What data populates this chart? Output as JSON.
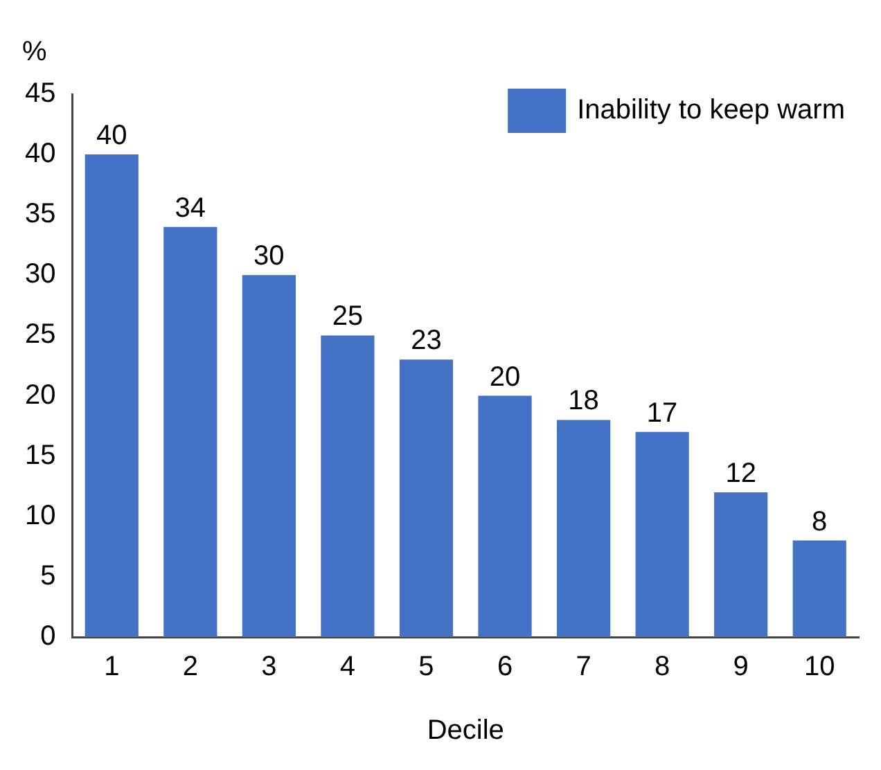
{
  "chart_data": {
    "type": "bar",
    "ylabel": "%",
    "xlabel": "Decile",
    "categories": [
      "1",
      "2",
      "3",
      "4",
      "5",
      "6",
      "7",
      "8",
      "9",
      "10"
    ],
    "series": [
      {
        "name": "Inability to keep warm",
        "color": "#4472c4",
        "values": [
          40,
          34,
          30,
          25,
          23,
          20,
          18,
          17,
          12,
          8
        ]
      }
    ],
    "ylim": [
      0,
      45
    ],
    "yticks": [
      0,
      5,
      10,
      15,
      20,
      25,
      30,
      35,
      40,
      45
    ],
    "grid": false,
    "legend": "top right",
    "data_labels": true
  }
}
